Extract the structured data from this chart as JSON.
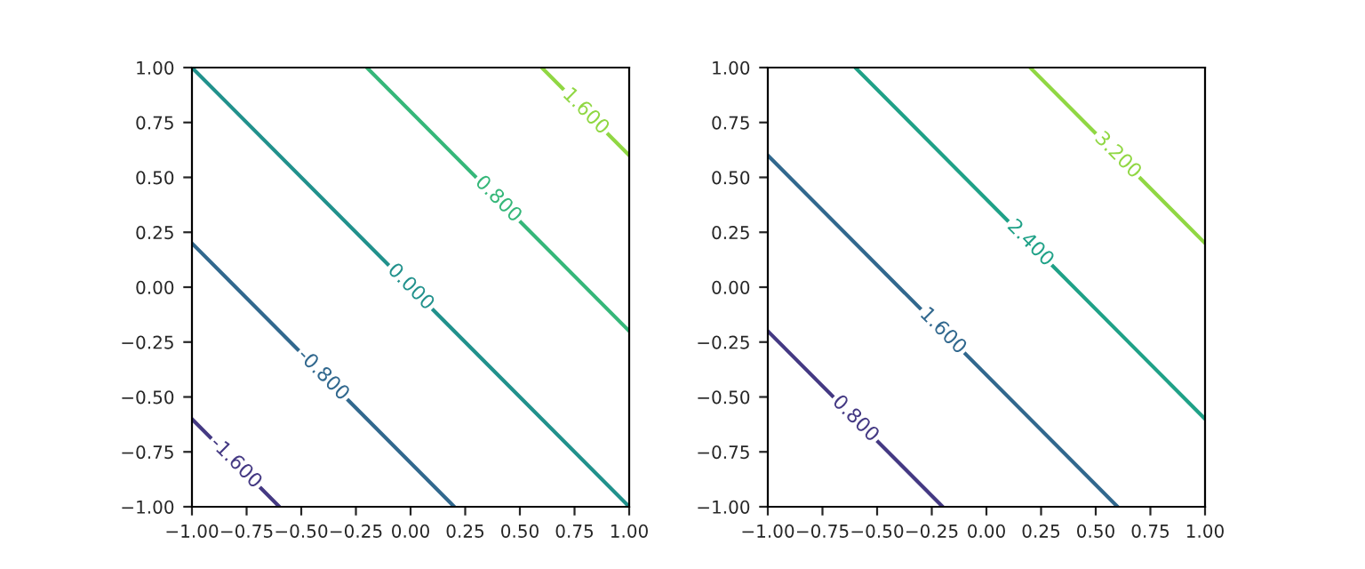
{
  "chart_data": [
    {
      "type": "line",
      "xlim": [
        -1,
        1
      ],
      "ylim": [
        -1,
        1
      ],
      "xticks": [
        {
          "value": -1,
          "label": "−1.00"
        },
        {
          "value": -0.75,
          "label": "−0.75"
        },
        {
          "value": -0.5,
          "label": "−0.50"
        },
        {
          "value": -0.25,
          "label": "−0.25"
        },
        {
          "value": 0,
          "label": "0.00"
        },
        {
          "value": 0.25,
          "label": "0.25"
        },
        {
          "value": 0.5,
          "label": "0.50"
        },
        {
          "value": 0.75,
          "label": "0.75"
        },
        {
          "value": 1,
          "label": "1.00"
        }
      ],
      "yticks": [
        {
          "value": -1,
          "label": "−1.00"
        },
        {
          "value": -0.75,
          "label": "−0.75"
        },
        {
          "value": -0.5,
          "label": "−0.50"
        },
        {
          "value": -0.25,
          "label": "−0.25"
        },
        {
          "value": 0,
          "label": "0.00"
        },
        {
          "value": 0.25,
          "label": "0.25"
        },
        {
          "value": 0.5,
          "label": "0.50"
        },
        {
          "value": 0.75,
          "label": "0.75"
        },
        {
          "value": 1,
          "label": "1.00"
        }
      ],
      "series": [
        {
          "name": "-1.600",
          "color": "#443983",
          "x": [
            -1,
            -0.6
          ],
          "values": [
            -0.6,
            -1
          ]
        },
        {
          "name": "-0.800",
          "color": "#31688e",
          "x": [
            -1,
            0.2
          ],
          "values": [
            0.2,
            -1
          ]
        },
        {
          "name": "0.000",
          "color": "#21918c",
          "x": [
            -1,
            1
          ],
          "values": [
            1,
            -1
          ]
        },
        {
          "name": "0.800",
          "color": "#35b779",
          "x": [
            -0.2,
            1
          ],
          "values": [
            1,
            -0.2
          ]
        },
        {
          "name": "1.600",
          "color": "#90d743",
          "x": [
            0.6,
            1
          ],
          "values": [
            1,
            0.6
          ]
        }
      ]
    },
    {
      "type": "line",
      "xlim": [
        -1,
        1
      ],
      "ylim": [
        -1,
        1
      ],
      "xticks": [
        {
          "value": -1,
          "label": "−1.00"
        },
        {
          "value": -0.75,
          "label": "−0.75"
        },
        {
          "value": -0.5,
          "label": "−0.50"
        },
        {
          "value": -0.25,
          "label": "−0.25"
        },
        {
          "value": 0,
          "label": "0.00"
        },
        {
          "value": 0.25,
          "label": "0.25"
        },
        {
          "value": 0.5,
          "label": "0.50"
        },
        {
          "value": 0.75,
          "label": "0.75"
        },
        {
          "value": 1,
          "label": "1.00"
        }
      ],
      "yticks": [
        {
          "value": -1,
          "label": "−1.00"
        },
        {
          "value": -0.75,
          "label": "−0.75"
        },
        {
          "value": -0.5,
          "label": "−0.50"
        },
        {
          "value": -0.25,
          "label": "−0.25"
        },
        {
          "value": 0,
          "label": "0.00"
        },
        {
          "value": 0.25,
          "label": "0.25"
        },
        {
          "value": 0.5,
          "label": "0.50"
        },
        {
          "value": 0.75,
          "label": "0.75"
        },
        {
          "value": 1,
          "label": "1.00"
        }
      ],
      "series": [
        {
          "name": "0.800",
          "color": "#443983",
          "x": [
            -1,
            -0.2
          ],
          "values": [
            -0.2,
            -1
          ]
        },
        {
          "name": "1.600",
          "color": "#31688e",
          "x": [
            -1,
            0.6
          ],
          "values": [
            0.6,
            -1
          ]
        },
        {
          "name": "2.400",
          "color": "#1fa187",
          "x": [
            -0.6,
            1
          ],
          "values": [
            1,
            -0.6
          ]
        },
        {
          "name": "3.200",
          "color": "#90d743",
          "x": [
            0.2,
            1
          ],
          "values": [
            1,
            0.2
          ]
        }
      ]
    }
  ]
}
